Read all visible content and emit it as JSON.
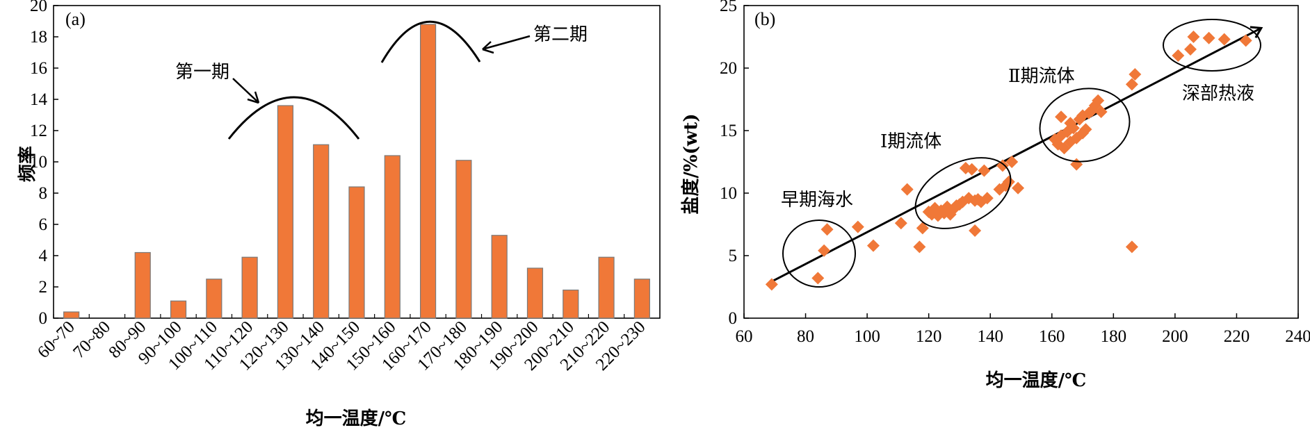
{
  "colors": {
    "bar": "#f07838",
    "bar_edge": "#7a7a7a",
    "marker": "#f07838",
    "line": "#000000"
  },
  "chart_data": [
    {
      "type": "bar",
      "panel_label": "(a)",
      "categories": [
        "60~70",
        "70~80",
        "80~90",
        "90~100",
        "100~110",
        "110~120",
        "120~130",
        "130~140",
        "140~150",
        "150~160",
        "160~170",
        "170~180",
        "180~190",
        "190~200",
        "200~210",
        "210~220",
        "220~230"
      ],
      "values": [
        0.4,
        0,
        4.2,
        1.1,
        2.5,
        3.9,
        13.6,
        11.1,
        8.4,
        10.4,
        18.8,
        10.1,
        5.3,
        3.2,
        1.8,
        3.9,
        2.5
      ],
      "xlabel": "均一温度/℃",
      "ylabel": "频率",
      "ylim": [
        0,
        20
      ],
      "yticks": [
        0,
        2,
        4,
        6,
        8,
        10,
        12,
        14,
        16,
        18,
        20
      ],
      "annotations": [
        {
          "text": "第一期",
          "peak_category": "130~140"
        },
        {
          "text": "第二期",
          "peak_category": "160~170"
        }
      ]
    },
    {
      "type": "scatter",
      "panel_label": "(b)",
      "xlabel": "均一温度/℃",
      "ylabel": "盐度/%(wt)",
      "xlim": [
        60,
        240
      ],
      "ylim": [
        0,
        25
      ],
      "xticks": [
        60,
        80,
        100,
        120,
        140,
        160,
        180,
        200,
        220,
        240
      ],
      "yticks": [
        0,
        5,
        10,
        15,
        20,
        25
      ],
      "trend_line": {
        "from": [
          68,
          2.8
        ],
        "to": [
          228,
          23.2
        ]
      },
      "points": [
        [
          69,
          2.7
        ],
        [
          84,
          3.2
        ],
        [
          86,
          5.4
        ],
        [
          87,
          7.1
        ],
        [
          97,
          7.3
        ],
        [
          102,
          5.8
        ],
        [
          111,
          7.6
        ],
        [
          113,
          10.3
        ],
        [
          117,
          5.7
        ],
        [
          118,
          7.2
        ],
        [
          120,
          8.5
        ],
        [
          121,
          8.3
        ],
        [
          122,
          8.8
        ],
        [
          123,
          8.2
        ],
        [
          124,
          8.6
        ],
        [
          125,
          8.4
        ],
        [
          126,
          8.9
        ],
        [
          127,
          8.3
        ],
        [
          128,
          8.7
        ],
        [
          129,
          9.0
        ],
        [
          130,
          9.1
        ],
        [
          131,
          9.3
        ],
        [
          132,
          12.0
        ],
        [
          133,
          9.6
        ],
        [
          134,
          11.9
        ],
        [
          135,
          9.4
        ],
        [
          135,
          7.0
        ],
        [
          136,
          9.5
        ],
        [
          137,
          9.3
        ],
        [
          138,
          11.8
        ],
        [
          139,
          9.6
        ],
        [
          143,
          10.3
        ],
        [
          144,
          12.2
        ],
        [
          145,
          10.6
        ],
        [
          146,
          10.9
        ],
        [
          147,
          12.5
        ],
        [
          149,
          10.4
        ],
        [
          161,
          14.3
        ],
        [
          162,
          13.9
        ],
        [
          163,
          14.6
        ],
        [
          163,
          16.1
        ],
        [
          164,
          13.6
        ],
        [
          165,
          14.9
        ],
        [
          166,
          15.6
        ],
        [
          166,
          14.1
        ],
        [
          167,
          15.2
        ],
        [
          168,
          14.4
        ],
        [
          168,
          12.3
        ],
        [
          169,
          15.9
        ],
        [
          170,
          14.8
        ],
        [
          170,
          16.2
        ],
        [
          171,
          15.1
        ],
        [
          172,
          16.4
        ],
        [
          173,
          16.6
        ],
        [
          174,
          17.0
        ],
        [
          175,
          17.4
        ],
        [
          176,
          16.5
        ],
        [
          186,
          18.7
        ],
        [
          187,
          19.5
        ],
        [
          186,
          5.7
        ],
        [
          201,
          21.0
        ],
        [
          205,
          21.5
        ],
        [
          206,
          22.5
        ],
        [
          211,
          22.4
        ],
        [
          216,
          22.3
        ],
        [
          223,
          22.2
        ]
      ],
      "annotations": [
        {
          "text": "早期海水"
        },
        {
          "text": "Ⅰ期流体"
        },
        {
          "text": "Ⅱ期流体"
        },
        {
          "text": "深部热液"
        }
      ]
    }
  ]
}
